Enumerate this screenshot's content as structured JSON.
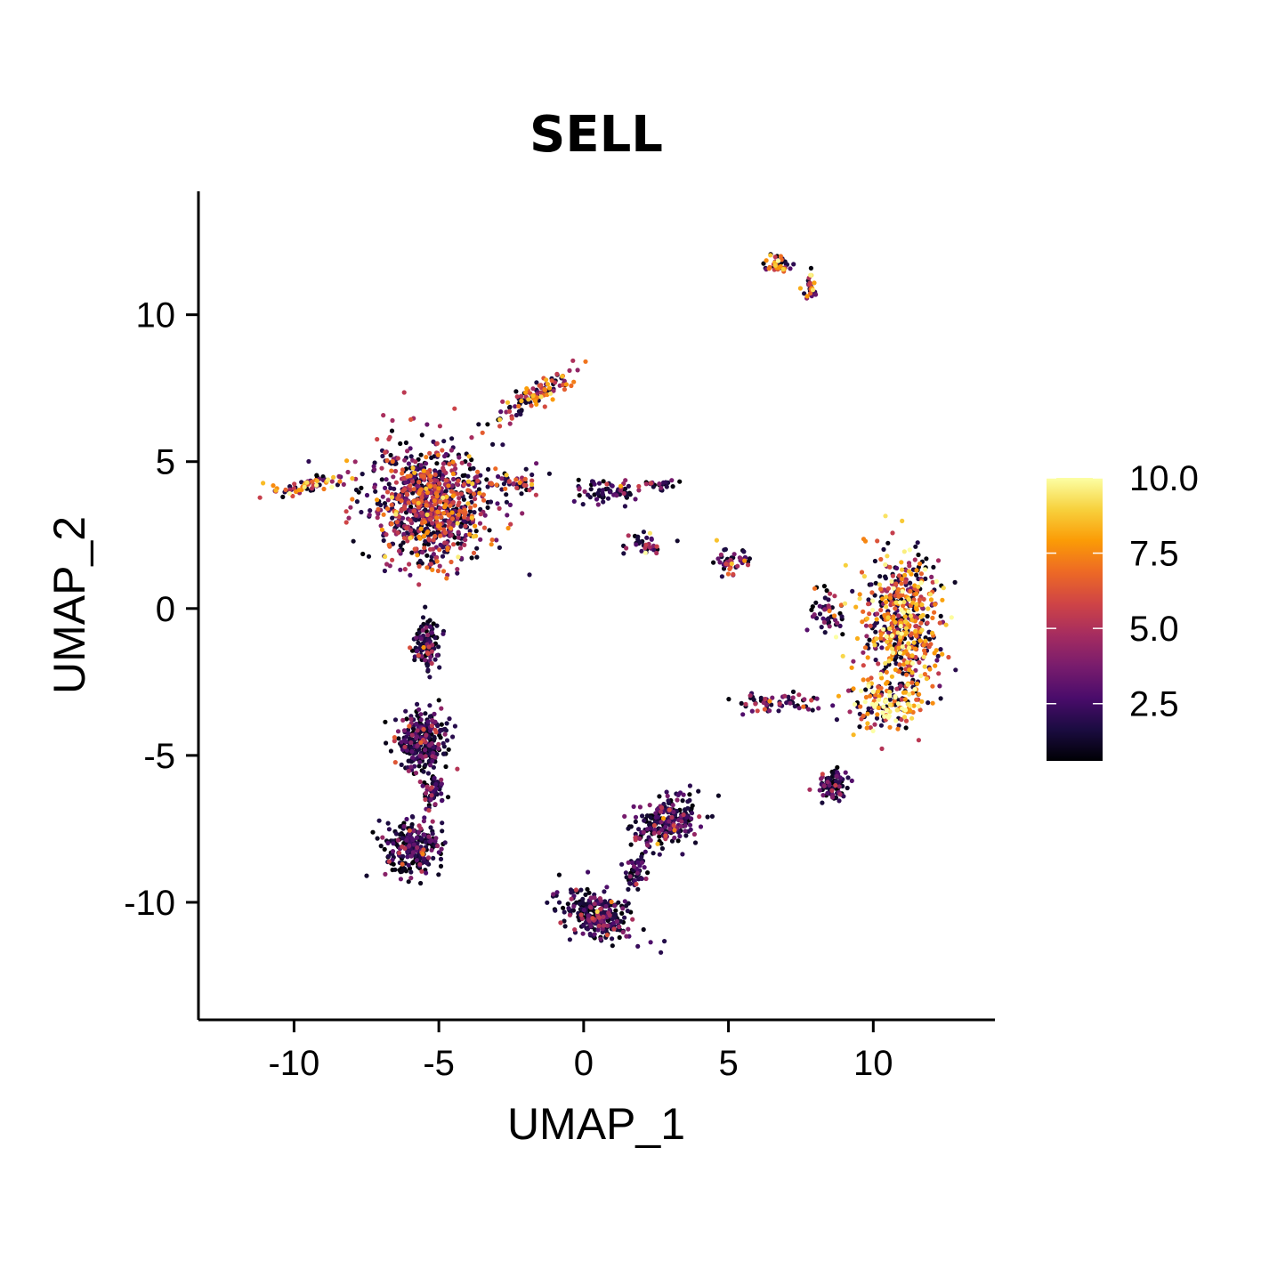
{
  "chart_data": {
    "type": "scatter",
    "title": "SELL",
    "xlabel": "UMAP_1",
    "ylabel": "UMAP_2",
    "xlim": [
      -13.3,
      14.2
    ],
    "ylim": [
      -14.0,
      14.2
    ],
    "xticks": [
      -10,
      -5,
      0,
      5,
      10
    ],
    "yticks": [
      -10,
      -5,
      0,
      5,
      10
    ],
    "xtick_labels": [
      "-10",
      "-5",
      "0",
      "5",
      "10"
    ],
    "ytick_labels": [
      "-10",
      "-5",
      "0",
      "5",
      "10"
    ],
    "grid": false,
    "colorbar": {
      "palette": "inferno",
      "range": [
        0.6,
        10.0
      ],
      "ticks": [
        2.5,
        5.0,
        7.5,
        10.0
      ],
      "tick_labels": [
        "2.5",
        "5.0",
        "7.5",
        "10.0"
      ],
      "colors": [
        "#000004",
        "#1b0c41",
        "#4a0c6b",
        "#781c6d",
        "#a52c60",
        "#cf4446",
        "#ed6925",
        "#fb9b06",
        "#f7d13d",
        "#fcffa4"
      ]
    },
    "clusters": [
      {
        "center": [
          -5.3,
          3.6
        ],
        "spread": [
          2.0,
          2.0
        ],
        "n": 900,
        "expression": 4.9
      },
      {
        "center": [
          -1.7,
          7.2
        ],
        "spread": [
          1.8,
          0.4
        ],
        "n": 110,
        "expression": 6.0,
        "tilt": 0.55
      },
      {
        "center": [
          -9.6,
          4.2
        ],
        "spread": [
          1.4,
          0.25
        ],
        "n": 70,
        "expression": 6.2,
        "tilt": 0.2
      },
      {
        "center": [
          -2.4,
          4.3
        ],
        "spread": [
          1.0,
          0.5
        ],
        "n": 50,
        "expression": 4.5
      },
      {
        "center": [
          0.8,
          4.0
        ],
        "spread": [
          1.1,
          0.4
        ],
        "n": 60,
        "expression": 2.5
      },
      {
        "center": [
          2.6,
          4.2
        ],
        "spread": [
          0.9,
          0.2
        ],
        "n": 25,
        "expression": 2.5
      },
      {
        "center": [
          2.1,
          2.2
        ],
        "spread": [
          0.7,
          0.4
        ],
        "n": 35,
        "expression": 4.2
      },
      {
        "center": [
          5.0,
          1.6
        ],
        "spread": [
          0.7,
          0.4
        ],
        "n": 45,
        "expression": 4.3
      },
      {
        "center": [
          6.7,
          11.7
        ],
        "spread": [
          0.45,
          0.25
        ],
        "n": 45,
        "expression": 5.5
      },
      {
        "center": [
          7.8,
          10.9
        ],
        "spread": [
          0.25,
          0.45
        ],
        "n": 30,
        "expression": 6.0
      },
      {
        "center": [
          11.0,
          -0.6
        ],
        "spread": [
          1.3,
          2.5
        ],
        "n": 560,
        "expression": 7.0
      },
      {
        "center": [
          10.4,
          -3.2
        ],
        "spread": [
          1.2,
          0.9
        ],
        "n": 140,
        "expression": 8.0
      },
      {
        "center": [
          8.5,
          -0.2
        ],
        "spread": [
          0.6,
          0.7
        ],
        "n": 50,
        "expression": 2.5
      },
      {
        "center": [
          6.7,
          -3.2
        ],
        "spread": [
          1.4,
          0.35
        ],
        "n": 60,
        "expression": 3.8
      },
      {
        "center": [
          8.6,
          -6.0
        ],
        "spread": [
          0.55,
          0.55
        ],
        "n": 80,
        "expression": 2.3
      },
      {
        "center": [
          -5.4,
          -1.2
        ],
        "spread": [
          0.45,
          0.9
        ],
        "n": 110,
        "expression": 2.3
      },
      {
        "center": [
          -5.6,
          -4.5
        ],
        "spread": [
          0.9,
          1.0
        ],
        "n": 280,
        "expression": 2.0
      },
      {
        "center": [
          -5.9,
          -8.1
        ],
        "spread": [
          0.9,
          0.9
        ],
        "n": 250,
        "expression": 1.8
      },
      {
        "center": [
          -5.2,
          -6.2
        ],
        "spread": [
          0.4,
          0.6
        ],
        "n": 60,
        "expression": 1.8
      },
      {
        "center": [
          2.8,
          -7.3
        ],
        "spread": [
          1.2,
          0.75
        ],
        "n": 230,
        "expression": 2.4,
        "tilt": 0.5
      },
      {
        "center": [
          0.5,
          -10.4
        ],
        "spread": [
          1.3,
          0.75
        ],
        "n": 280,
        "expression": 2.5,
        "tilt": -0.3
      },
      {
        "center": [
          1.8,
          -8.9
        ],
        "spread": [
          0.4,
          0.6
        ],
        "n": 50,
        "expression": 2.3
      }
    ]
  }
}
